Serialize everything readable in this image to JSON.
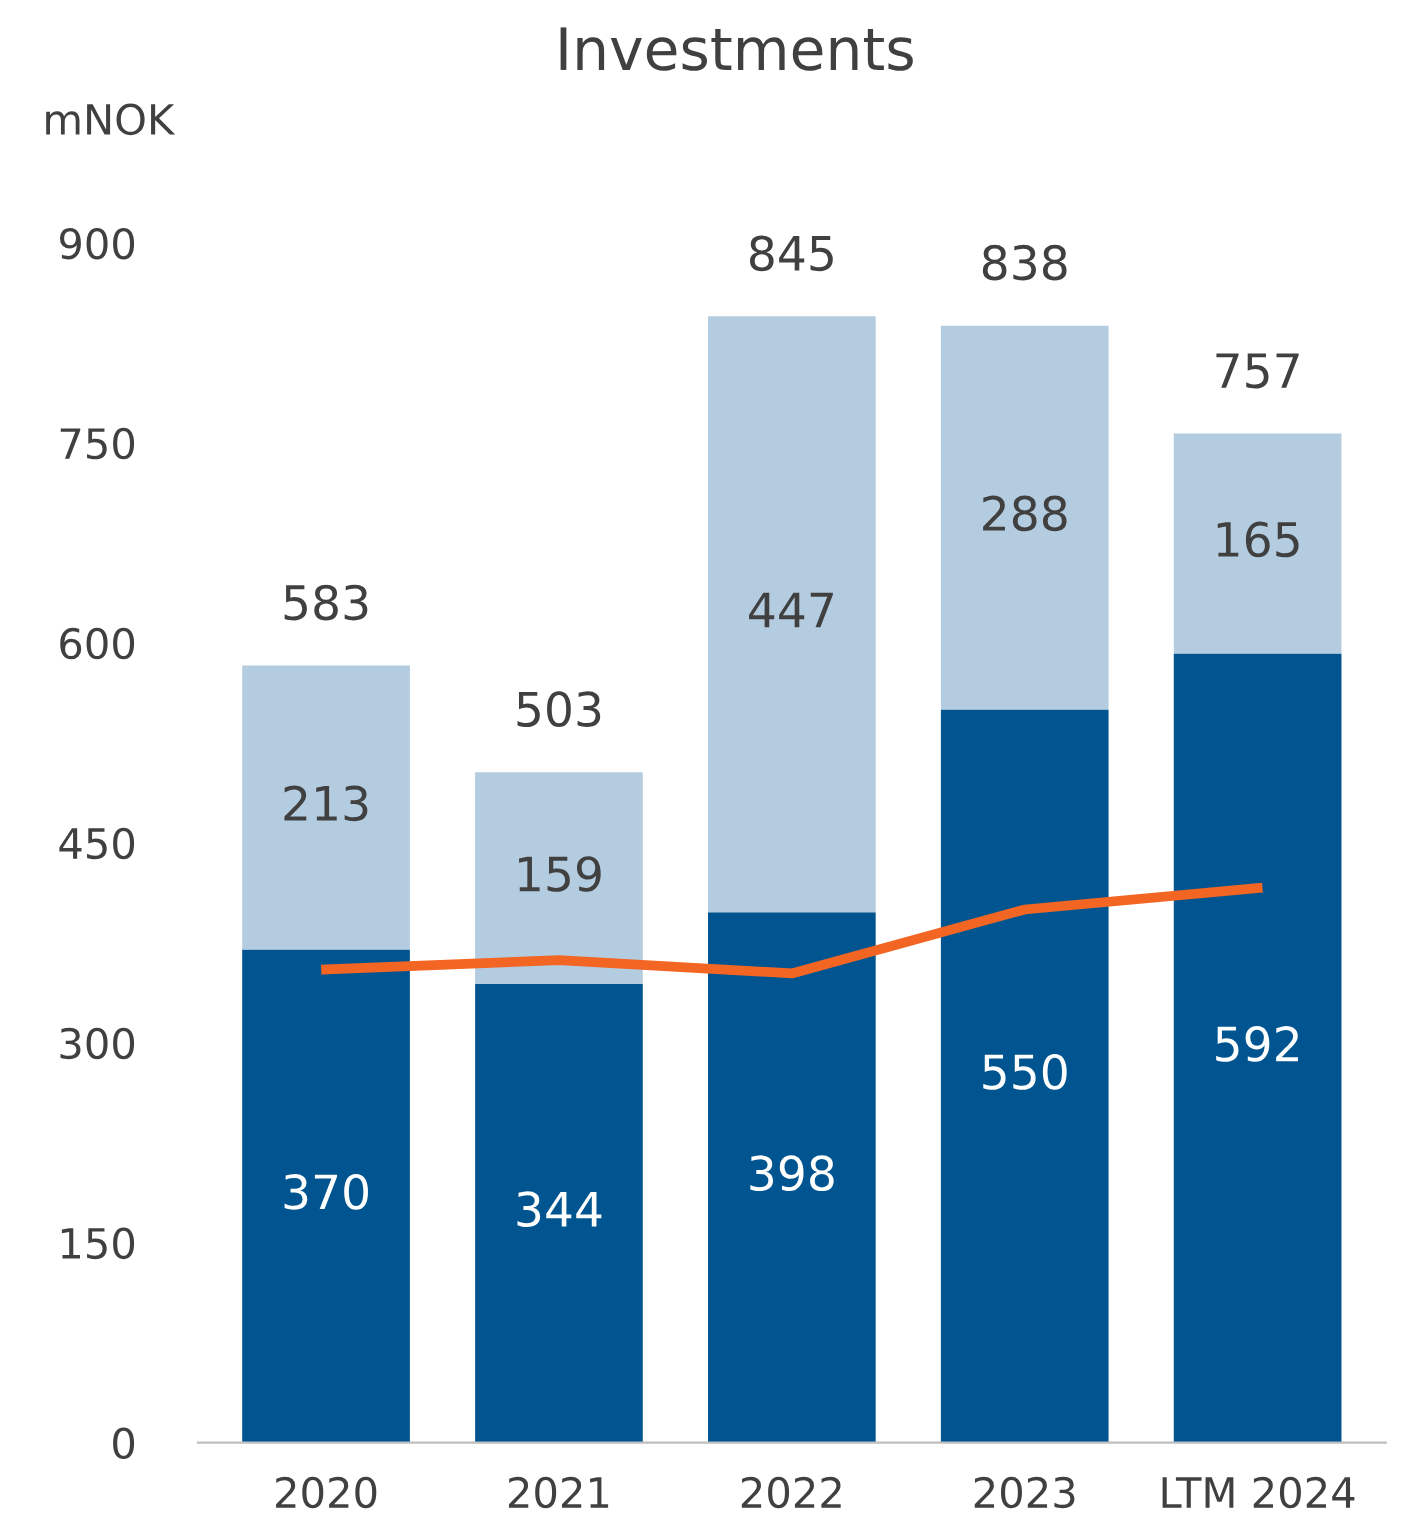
{
  "chart_data": {
    "type": "bar",
    "title": "Investments",
    "ylabel": "mNOK",
    "stacked": true,
    "categories": [
      "2020",
      "2021",
      "2022",
      "2023",
      "LTM 2024"
    ],
    "series": [
      {
        "color": "#005591",
        "values": [
          370,
          344,
          398,
          550,
          592
        ],
        "value_labels": [
          "370",
          "344",
          "398",
          "550",
          "592"
        ]
      },
      {
        "color": "#b4cce0",
        "values": [
          213,
          159,
          447,
          288,
          165
        ],
        "value_labels": [
          "213",
          "159",
          "447",
          "288",
          "165"
        ]
      },
      {
        "type": "line",
        "color": "#f26522",
        "values": [
          355,
          362,
          352,
          400,
          416
        ]
      }
    ],
    "totals": [
      "583",
      "503",
      "845",
      "838",
      "757"
    ],
    "ylim": [
      0,
      900
    ],
    "yticks": [
      0,
      150,
      300,
      450,
      600,
      750,
      900
    ],
    "grid": false,
    "legend": false
  }
}
